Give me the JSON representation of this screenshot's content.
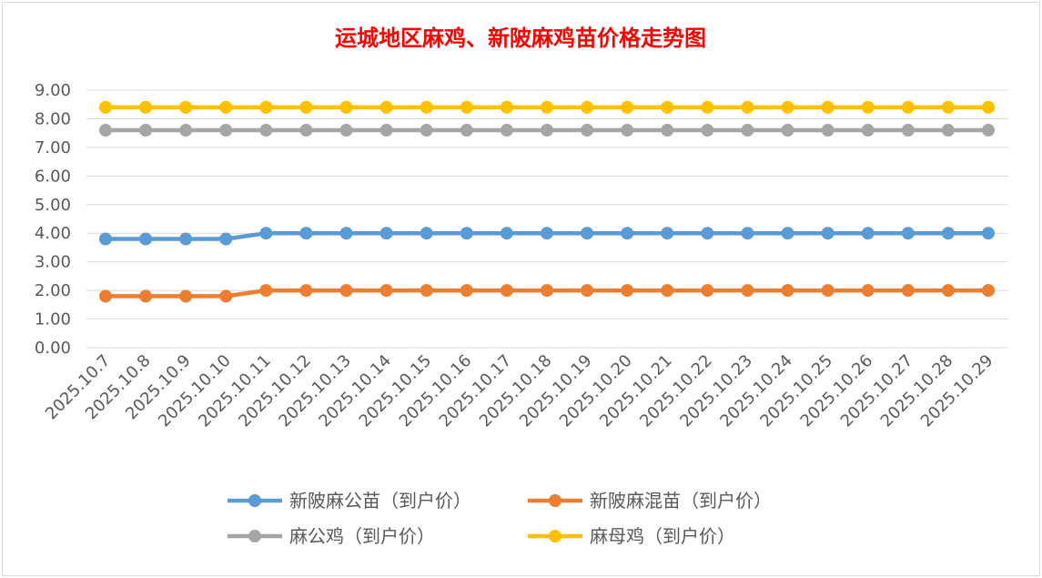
{
  "chart_data": {
    "type": "line",
    "title": "运城地区麻鸡、新陂麻鸡苗价格走势图",
    "xlabel": "",
    "ylabel": "",
    "ylim": [
      0,
      9
    ],
    "yticks": [
      "0.00",
      "1.00",
      "2.00",
      "3.00",
      "4.00",
      "5.00",
      "6.00",
      "7.00",
      "8.00",
      "9.00"
    ],
    "grid": true,
    "legend_position": "bottom",
    "categories": [
      "2025.10.7",
      "2025.10.8",
      "2025.10.9",
      "2025.10.10",
      "2025.10.11",
      "2025.10.12",
      "2025.10.13",
      "2025.10.14",
      "2025.10.15",
      "2025.10.16",
      "2025.10.17",
      "2025.10.18",
      "2025.10.19",
      "2025.10.20",
      "2025.10.21",
      "2025.10.22",
      "2025.10.23",
      "2025.10.24",
      "2025.10.25",
      "2025.10.26",
      "2025.10.27",
      "2025.10.28",
      "2025.10.29"
    ],
    "series": [
      {
        "name": "新陂麻公苗（到户价）",
        "color": "#5b9bd5",
        "values": [
          3.8,
          3.8,
          3.8,
          3.8,
          4.0,
          4.0,
          4.0,
          4.0,
          4.0,
          4.0,
          4.0,
          4.0,
          4.0,
          4.0,
          4.0,
          4.0,
          4.0,
          4.0,
          4.0,
          4.0,
          4.0,
          4.0,
          4.0
        ]
      },
      {
        "name": "新陂麻混苗（到户价）",
        "color": "#ed7d31",
        "values": [
          1.8,
          1.8,
          1.8,
          1.8,
          2.0,
          2.0,
          2.0,
          2.0,
          2.0,
          2.0,
          2.0,
          2.0,
          2.0,
          2.0,
          2.0,
          2.0,
          2.0,
          2.0,
          2.0,
          2.0,
          2.0,
          2.0,
          2.0
        ]
      },
      {
        "name": "麻公鸡（到户价）",
        "color": "#a5a5a5",
        "values": [
          7.6,
          7.6,
          7.6,
          7.6,
          7.6,
          7.6,
          7.6,
          7.6,
          7.6,
          7.6,
          7.6,
          7.6,
          7.6,
          7.6,
          7.6,
          7.6,
          7.6,
          7.6,
          7.6,
          7.6,
          7.6,
          7.6,
          7.6
        ]
      },
      {
        "name": "麻母鸡（到户价）",
        "color": "#ffc000",
        "values": [
          8.4,
          8.4,
          8.4,
          8.4,
          8.4,
          8.4,
          8.4,
          8.4,
          8.4,
          8.4,
          8.4,
          8.4,
          8.4,
          8.4,
          8.4,
          8.4,
          8.4,
          8.4,
          8.4,
          8.4,
          8.4,
          8.4,
          8.4
        ]
      }
    ],
    "colors": {
      "title": "#ff0000",
      "gridline": "#d9d9d9",
      "axis_text": "#595959"
    }
  }
}
